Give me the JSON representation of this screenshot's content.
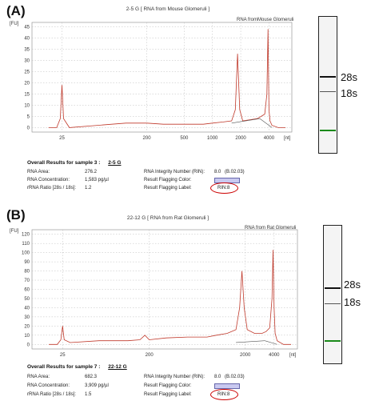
{
  "panels": [
    {
      "id": "A",
      "label": "(A)",
      "sample_name": "2-5 G",
      "title": "2-5 G [ RNA from Mouse Glomeruli ]",
      "subtitle": "RNA fromMouse Glomeruli",
      "results": {
        "heading": "Overall Results for sample 3 :",
        "sample": "2-5 G",
        "rna_area_label": "RNA Area:",
        "rna_area": "276.2",
        "rna_conc_label": "RNA Concentration:",
        "rna_conc": "1,583 pg/µl",
        "rrna_ratio_label": "rRNA Ratio [28s / 18s]:",
        "rrna_ratio": "1.2",
        "rin_label": "RNA Integrity Number (RIN):",
        "rin": "8.0",
        "rin_version": "(B.02.03)",
        "flag_color_label": "Result Flagging Color:",
        "flag_label_label": "Result Flagging Label:",
        "flag_label": "RIN:8"
      },
      "gel": {
        "band_28s": "28s",
        "band_18s": "18s"
      }
    },
    {
      "id": "B",
      "label": "(B)",
      "sample_name": "22-12 G",
      "title": "22-12 G [ RNA from Rat Glomeruli ]",
      "subtitle": "RNA from Rat Glomeruli",
      "results": {
        "heading": "Overall Results for sample 7 :",
        "sample": "22-12 G",
        "rna_area_label": "RNA Area:",
        "rna_area": "682.3",
        "rna_conc_label": "RNA Concentration:",
        "rna_conc": "3,909 pg/µl",
        "rrna_ratio_label": "rRNA Ratio [28s / 18s]:",
        "rrna_ratio": "1.5",
        "rin_label": "RNA Integrity Number (RIN):",
        "rin": "8.0",
        "rin_version": "(B.02.03)",
        "flag_color_label": "Result Flagging Color:",
        "flag_label_label": "Result Flagging Label:",
        "flag_label": "RIN:8"
      },
      "gel": {
        "band_28s": "28s",
        "band_18s": "18s"
      }
    }
  ],
  "colors": {
    "trace": "#c0392b",
    "baseline": "#555555",
    "grid": "#bbbbbb",
    "rin_circle": "#cc0000",
    "marker_band": "#1a8a1a"
  },
  "chart_data": [
    {
      "type": "line",
      "title": "2-5 G [ RNA from Mouse Glomeruli ]",
      "ylabel": "[FU]",
      "xlabel": "[nt]",
      "x_scale": "log",
      "x_ticks": [
        "25",
        "200",
        "500",
        "1000",
        "2000",
        "4000"
      ],
      "y_ticks": [
        "0",
        "5",
        "10",
        "15",
        "20",
        "25",
        "30",
        "35",
        "40",
        "45"
      ],
      "ylim": [
        -2,
        47
      ],
      "series": [
        {
          "x": [
            18,
            22,
            24,
            25,
            26,
            30,
            60,
            120,
            200,
            300,
            500,
            800,
            1000,
            1300,
            1600,
            1750,
            1850,
            1950,
            2100,
            2500,
            3000,
            3300,
            3600,
            3800,
            3900,
            4000,
            4100,
            4300,
            5000,
            6000
          ],
          "y": [
            0,
            0,
            4,
            19,
            4,
            0,
            1,
            2,
            2,
            1.5,
            1.5,
            1.5,
            2,
            2.5,
            3,
            8,
            33,
            8,
            3,
            3.5,
            4,
            5,
            6,
            15,
            44,
            8,
            3,
            1,
            0,
            0
          ]
        }
      ],
      "grid": true
    },
    {
      "type": "line",
      "title": "22-12 G [ RNA from Rat Glomeruli ]",
      "ylabel": "[FU]",
      "xlabel": "[nt]",
      "x_scale": "log",
      "x_ticks": [
        "25",
        "200",
        "2000",
        "4000"
      ],
      "y_ticks": [
        "0",
        "10",
        "20",
        "30",
        "40",
        "50",
        "60",
        "70",
        "80",
        "90",
        "100",
        "110",
        "120"
      ],
      "ylim": [
        -5,
        125
      ],
      "series": [
        {
          "x": [
            18,
            22,
            24,
            25,
            26,
            30,
            60,
            120,
            160,
            180,
            200,
            300,
            500,
            800,
            1000,
            1300,
            1600,
            1750,
            1850,
            1950,
            2100,
            2500,
            3000,
            3300,
            3600,
            3800,
            3900,
            4000,
            4100,
            4300,
            5000,
            6000
          ],
          "y": [
            0,
            0,
            5,
            20,
            5,
            2,
            4,
            4,
            5,
            10,
            5,
            7,
            8,
            8,
            10,
            12,
            16,
            40,
            80,
            40,
            16,
            12,
            12,
            14,
            18,
            50,
            103,
            40,
            12,
            4,
            0,
            0
          ]
        }
      ],
      "grid": true
    }
  ]
}
